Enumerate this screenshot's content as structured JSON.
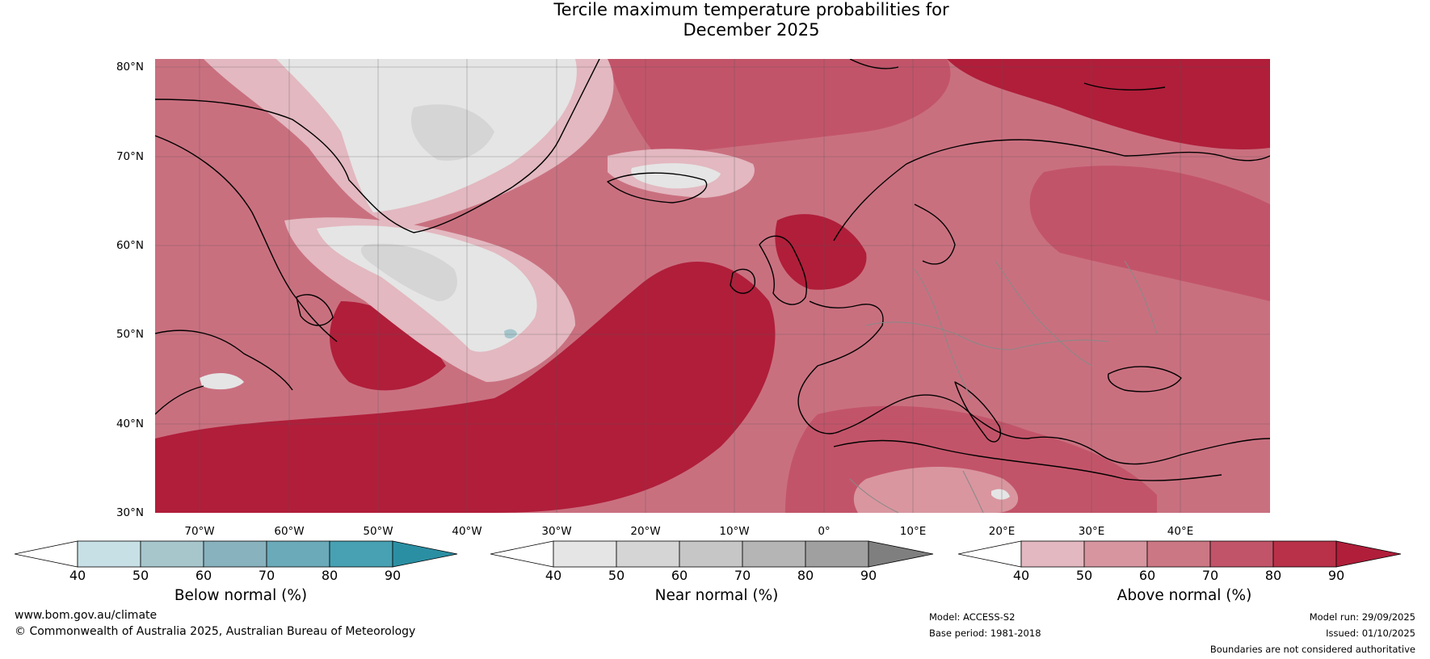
{
  "title_line1": "Tercile maximum temperature probabilities for",
  "title_line2": "December 2025",
  "latitudes": [
    "80°N",
    "70°N",
    "60°N",
    "50°N",
    "40°N",
    "30°N"
  ],
  "longitudes": [
    "70°W",
    "60°W",
    "50°W",
    "40°W",
    "30°W",
    "20°W",
    "10°W",
    "0°",
    "10°E",
    "20°E",
    "30°E",
    "40°E"
  ],
  "legends": [
    {
      "title": "Below normal (%)",
      "ticks": [
        "40",
        "50",
        "60",
        "70",
        "80",
        "90"
      ],
      "colors": [
        "#ffffff",
        "#c7e0e6",
        "#a6c6cc",
        "#88b2bd",
        "#6aaab9",
        "#47a1b2",
        "#2b8fa3"
      ]
    },
    {
      "title": "Near normal (%)",
      "ticks": [
        "40",
        "50",
        "60",
        "70",
        "80",
        "90"
      ],
      "colors": [
        "#ffffff",
        "#e5e5e5",
        "#d5d5d5",
        "#c6c6c6",
        "#b5b5b5",
        "#a0a0a0",
        "#7f7f7f"
      ]
    },
    {
      "title": "Above normal (%)",
      "ticks": [
        "40",
        "50",
        "60",
        "70",
        "80",
        "90"
      ],
      "colors": [
        "#ffffff",
        "#e3b8c0",
        "#d7959f",
        "#cc7784",
        "#c25469",
        "#b83148",
        "#b01e3a"
      ]
    }
  ],
  "footer": {
    "website": "www.bom.gov.au/climate",
    "copyright": "© Commonwealth of Australia 2025, Australian Bureau of Meteorology",
    "model": "Model: ACCESS-S2",
    "base_period": "Base period: 1981-2018",
    "model_run": "Model run: 29/09/2025",
    "issued": "Issued: 01/10/2025",
    "disclaimer": "Boundaries are not considered authoritative"
  },
  "colors": {
    "above_base": "#c9707f",
    "above_high": "#b01e3a",
    "above_mid": "#c25469",
    "above_low": "#d9969f",
    "above_faint": "#e3b8c0",
    "near_light": "#e5e5e5",
    "near_mid": "#d5d5d5",
    "below_light": "#a6c6cc"
  }
}
